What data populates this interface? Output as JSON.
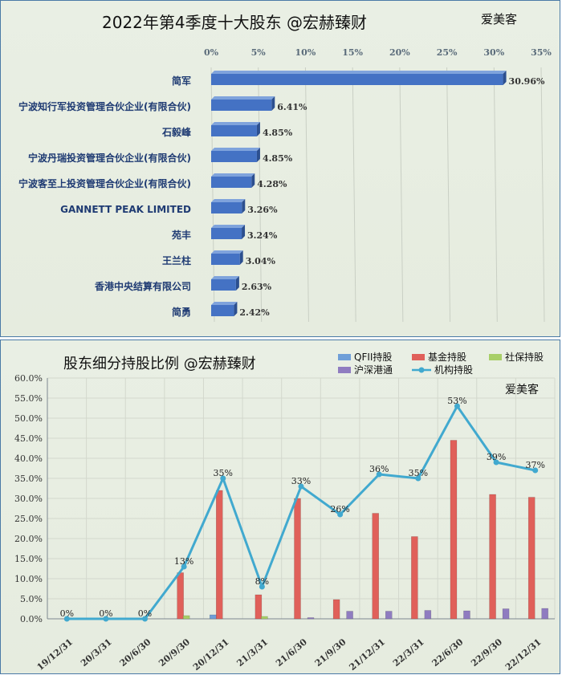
{
  "top_chart": {
    "title": "2022年第4季度十大股东  @宏赫臻财",
    "brand": "爱美客"
  },
  "bottom_chart": {
    "title": "股东细分持股比例 @宏赫臻财",
    "brand": "爱美客"
  },
  "colors": {
    "bar_blue": "#4472c4",
    "fund_red": "#e0605a",
    "qfii_blue": "#6f9fd8",
    "social_green": "#a8cf68",
    "hk_purple": "#8f7cc0",
    "inst_line": "#41a9cf"
  },
  "chart_data": [
    {
      "type": "bar",
      "orientation": "horizontal",
      "title": "2022年第4季度十大股东  @宏赫臻财",
      "categories": [
        "简军",
        "宁波知行军投资管理合伙企业(有限合伙)",
        "石毅峰",
        "宁波丹瑞投资管理合伙企业(有限合伙)",
        "宁波客至上投资管理合伙企业(有限合伙)",
        "GANNETT PEAK LIMITED",
        "苑丰",
        "王兰柱",
        "香港中央结算有限公司",
        "简勇"
      ],
      "values": [
        30.96,
        6.41,
        4.85,
        4.85,
        4.28,
        3.26,
        3.24,
        3.04,
        2.63,
        2.42
      ],
      "value_labels": [
        "30.96%",
        "6.41%",
        "4.85%",
        "4.85%",
        "4.28%",
        "3.26%",
        "3.24%",
        "3.04%",
        "2.63%",
        "2.42%"
      ],
      "xticks": [
        "0%",
        "5%",
        "10%",
        "15%",
        "20%",
        "25%",
        "30%",
        "35%"
      ],
      "xlim": [
        0,
        35
      ],
      "unit": "%"
    },
    {
      "type": "bar+line",
      "title": "股东细分持股比例 @宏赫臻财",
      "categories": [
        "19/12/31",
        "20/3/31",
        "20/6/30",
        "20/9/30",
        "20/12/31",
        "21/3/31",
        "21/6/30",
        "21/9/30",
        "21/12/31",
        "22/3/31",
        "22/6/30",
        "22/9/30",
        "22/12/31"
      ],
      "yticks": [
        "0.0%",
        "5.0%",
        "10.0%",
        "15.0%",
        "20.0%",
        "25.0%",
        "30.0%",
        "35.0%",
        "40.0%",
        "45.0%",
        "50.0%",
        "55.0%",
        "60.0%"
      ],
      "ylim": [
        0,
        60
      ],
      "series": [
        {
          "name": "QFII持股",
          "kind": "bar",
          "values": [
            0,
            0,
            0,
            0,
            1.0,
            0,
            0,
            0,
            0,
            0,
            0,
            0,
            0
          ]
        },
        {
          "name": "基金持股",
          "kind": "bar",
          "values": [
            0,
            0,
            0,
            11.5,
            32.0,
            6.0,
            30.0,
            4.8,
            26.3,
            20.5,
            44.5,
            31.0,
            30.3
          ]
        },
        {
          "name": "社保持股",
          "kind": "bar",
          "values": [
            0,
            0,
            0,
            0.8,
            0,
            0.6,
            0,
            0,
            0,
            0,
            0,
            0,
            0
          ]
        },
        {
          "name": "沪深港通",
          "kind": "bar",
          "values": [
            0,
            0,
            0,
            0,
            0,
            0,
            0.3,
            1.9,
            1.9,
            2.1,
            2.0,
            2.5,
            2.6
          ]
        },
        {
          "name": "机构持股",
          "kind": "line",
          "values": [
            0,
            0,
            0,
            13,
            35,
            8,
            33,
            26,
            36,
            35,
            53,
            39,
            37
          ]
        }
      ],
      "line_labels": [
        "0%",
        "0%",
        "0%",
        "13%",
        "35%",
        "8%",
        "33%",
        "26%",
        "36%",
        "35%",
        "53%",
        "39%",
        "37%"
      ]
    }
  ]
}
